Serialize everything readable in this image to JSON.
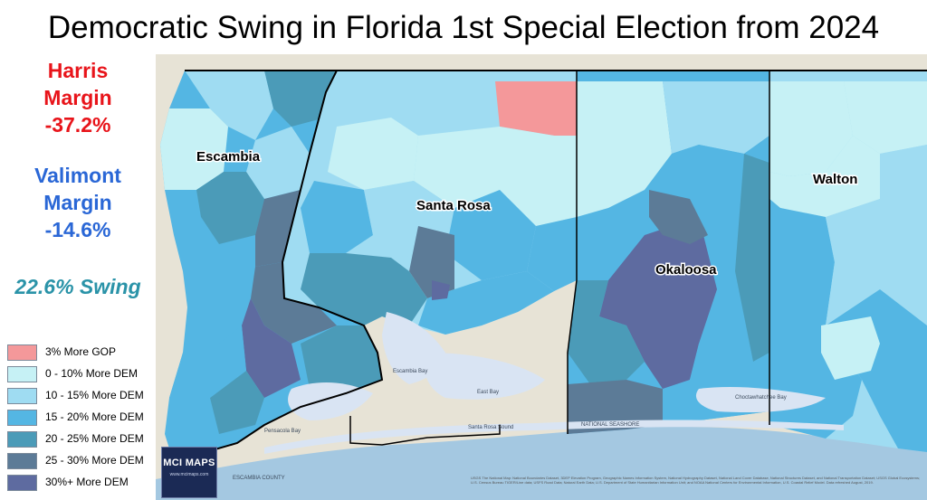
{
  "title": "Democratic Swing in Florida 1st Special Election from 2024",
  "left_panel": {
    "harris": {
      "line1": "Harris",
      "line2": "Margin",
      "value": "-37.2%",
      "color": "#e8141a"
    },
    "valimont": {
      "line1": "Valimont",
      "line2": "Margin",
      "value": "-14.6%",
      "color": "#2a67d6"
    },
    "swing": "22.6% Swing"
  },
  "legend": {
    "items": [
      {
        "label": "3% More GOP",
        "color": "#f4989a"
      },
      {
        "label": "0 - 10% More DEM",
        "color": "#c6f1f5"
      },
      {
        "label": "10 - 15% More DEM",
        "color": "#9fdcf2"
      },
      {
        "label": "15 - 20% More DEM",
        "color": "#54b6e3"
      },
      {
        "label": "20 - 25% More DEM",
        "color": "#4b9bb8"
      },
      {
        "label": "25 - 30% More DEM",
        "color": "#5c7b97"
      },
      {
        "label": "30%+ More DEM",
        "color": "#5e6ba0"
      }
    ]
  },
  "map": {
    "counties": [
      "Escambia",
      "Santa Rosa",
      "Okaloosa",
      "Walton"
    ],
    "places": [
      "Pensacola Bay",
      "Escambia Bay",
      "East Bay",
      "Santa Rosa Sound",
      "Choctawhatchee Bay",
      "ESCAMBIA COUNTY",
      "NATIONAL SEASHORE"
    ],
    "colors": {
      "land": "#e7e3d6",
      "water": "#d9e4f3",
      "gulf": "#a4c8e1",
      "county_border": "#000000"
    }
  },
  "logo": {
    "main": "MCI MAPS",
    "sub": "www.mcimaps.com"
  },
  "credits": "USGS The National Map: National Boundaries Dataset, 3DEP Elevation Program, Geographic Names Information System, National Hydrography Dataset, National Land Cover Database, National Structures Dataset, and National Transportation Dataset; USGS Global Ecosystems; U.S. Census Bureau TIGER/Line data; USFS Road Data; Natural Earth Data; U.S. Department of State Humanitarian Information Unit; and NOAA National Centers for Environmental Information, U.S. Coastal Relief Model. Data refreshed August, 2019."
}
